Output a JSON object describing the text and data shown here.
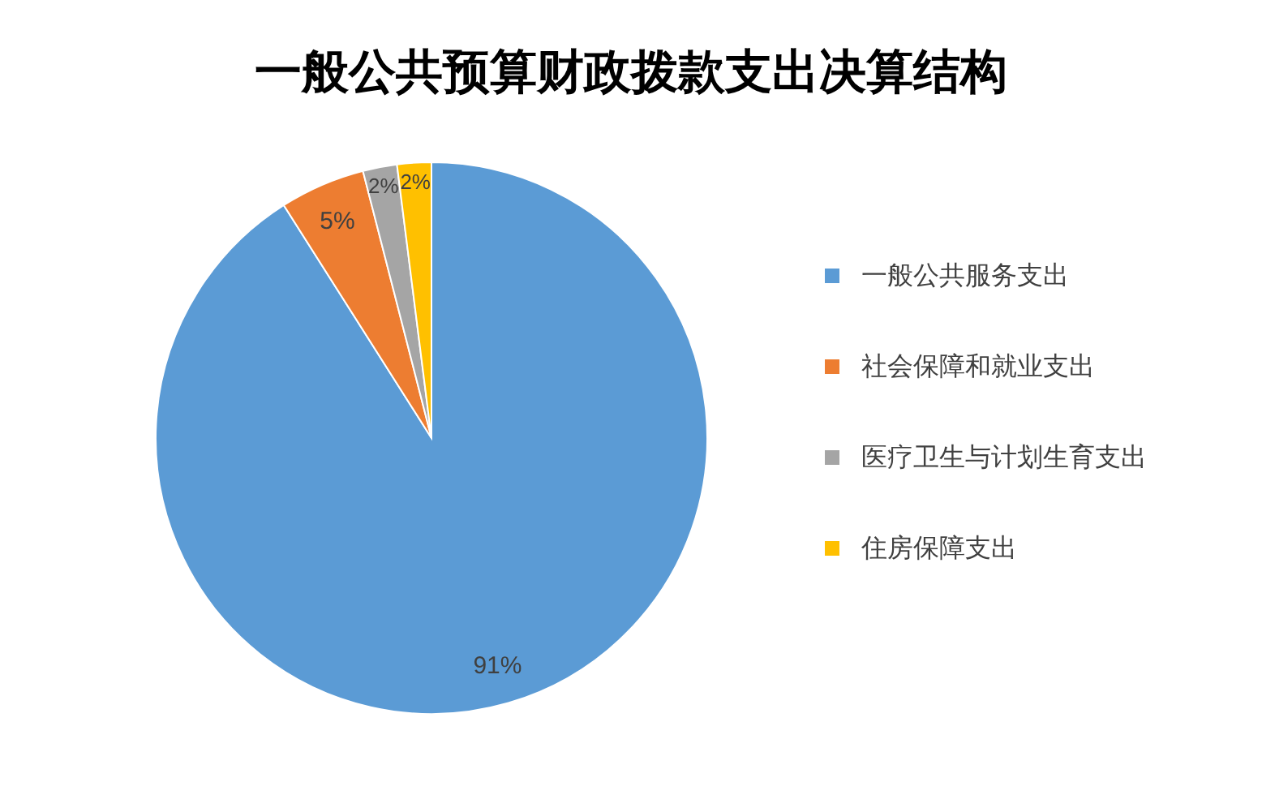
{
  "chart_data": {
    "type": "pie",
    "title": "一般公共预算财政拨款支出决算结构",
    "categories": [
      "一般公共服务支出",
      "社会保障和就业支出",
      "医疗卫生与计划生育支出",
      "住房保障支出"
    ],
    "values": [
      91,
      5,
      2,
      2
    ],
    "colors": [
      "#5b9bd5",
      "#ed7d31",
      "#a5a5a5",
      "#ffc000"
    ],
    "value_labels": [
      "91%",
      "5%",
      "2%",
      "2%"
    ],
    "legend": "right"
  }
}
